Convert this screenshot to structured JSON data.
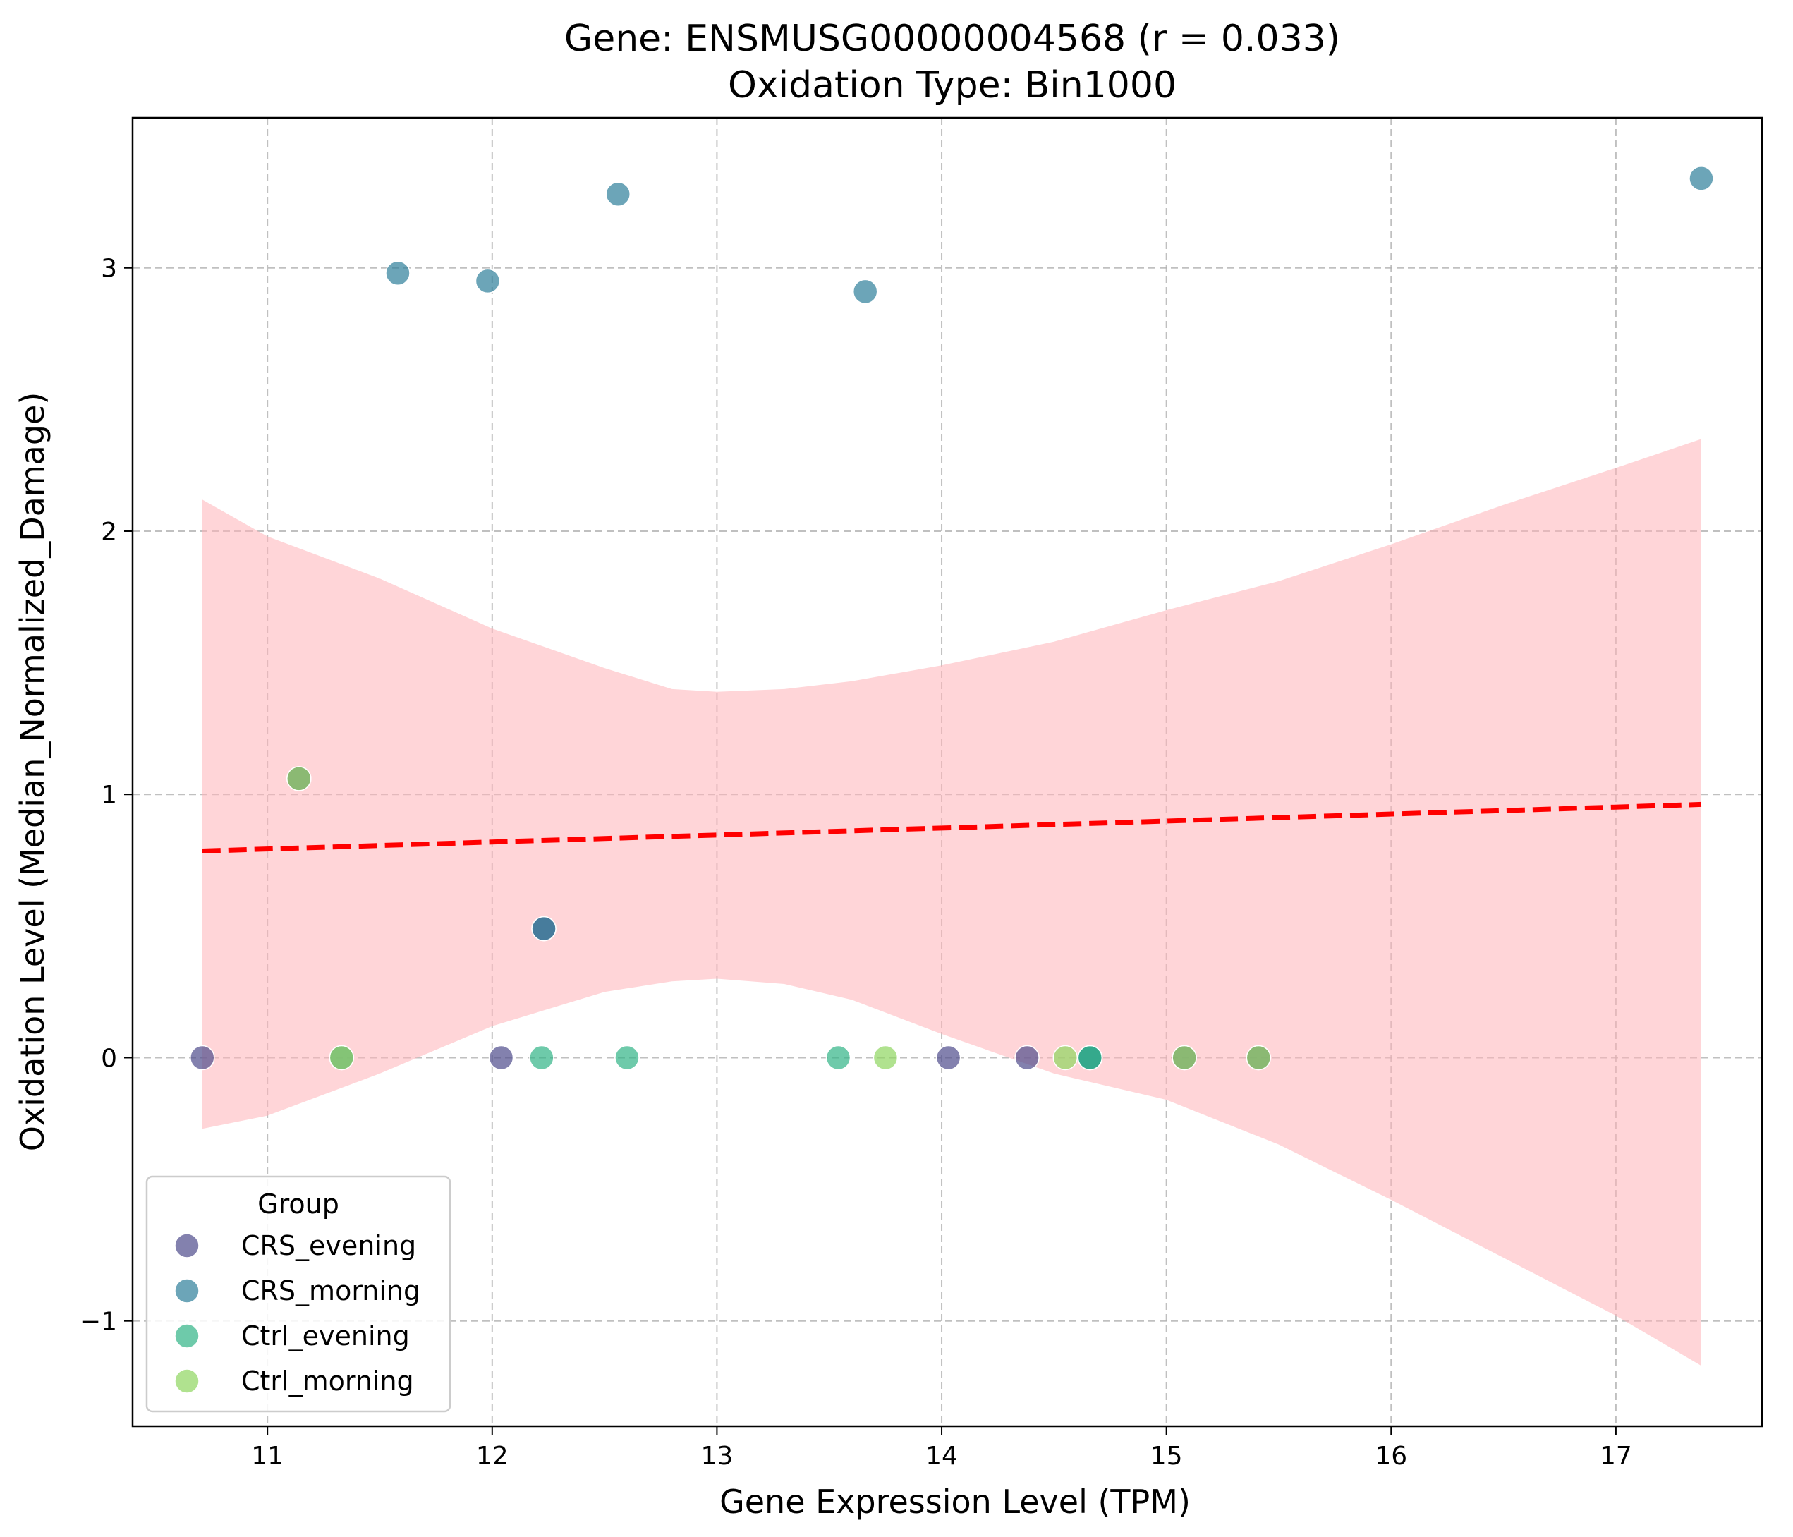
{
  "chart_data": {
    "type": "scatter",
    "title": "Gene: ENSMUSG00000004568 (r = 0.033)",
    "subtitle": "Oxidation Type: Bin1000",
    "xlabel": "Gene Expression Level (TPM)",
    "ylabel": "Oxidation Level (Median_Normalized_Damage)",
    "xlim": [
      10.4,
      17.65
    ],
    "ylim": [
      -1.4,
      3.57
    ],
    "xticks": [
      11,
      12,
      13,
      14,
      15,
      16,
      17
    ],
    "yticks": [
      -1,
      0,
      1,
      2,
      3
    ],
    "ytick_labels": [
      "−1",
      "0",
      "1",
      "2",
      "3"
    ],
    "grid": true,
    "legend": {
      "title": "Group",
      "placement": "lower-left",
      "entries": [
        "CRS_evening",
        "CRS_morning",
        "Ctrl_evening",
        "Ctrl_morning"
      ]
    },
    "colors": {
      "CRS_evening": "#4e4b8c",
      "CRS_morning": "#2e7f9a",
      "Ctrl_evening": "#30b486",
      "Ctrl_morning": "#8ed65f",
      "regression": "#ff0000",
      "ci_band": "#ffb3b8"
    },
    "series": [
      {
        "name": "CRS_evening",
        "points": [
          [
            10.71,
            0
          ],
          [
            12.04,
            0
          ],
          [
            14.03,
            0
          ],
          [
            14.38,
            0
          ]
        ]
      },
      {
        "name": "CRS_morning",
        "points": [
          [
            11.58,
            2.98
          ],
          [
            11.98,
            2.95
          ],
          [
            12.56,
            3.28
          ],
          [
            13.66,
            2.91
          ],
          [
            17.38,
            3.34
          ]
        ]
      },
      {
        "name": "Ctrl_evening",
        "points": [
          [
            12.22,
            0
          ],
          [
            12.6,
            0
          ],
          [
            13.54,
            0
          ],
          [
            14.66,
            0
          ]
        ]
      },
      {
        "name": "Ctrl_morning",
        "points": [
          [
            13.75,
            0
          ],
          [
            14.55,
            0
          ]
        ]
      }
    ],
    "overlapping_points": [
      {
        "x": 11.14,
        "y": 1.06,
        "groups": [
          "CRS_evening",
          "Ctrl_morning"
        ]
      },
      {
        "x": 11.33,
        "y": 0,
        "groups": [
          "CRS_morning",
          "Ctrl_morning"
        ]
      },
      {
        "x": 12.23,
        "y": 0.49,
        "groups": [
          "CRS_evening",
          "CRS_morning"
        ]
      },
      {
        "x": 14.66,
        "y": 0,
        "groups": [
          "CRS_morning",
          "Ctrl_evening"
        ]
      },
      {
        "x": 15.08,
        "y": 0,
        "groups": [
          "CRS_evening",
          "Ctrl_morning"
        ]
      },
      {
        "x": 15.41,
        "y": 0,
        "groups": [
          "CRS_evening",
          "Ctrl_morning"
        ]
      }
    ],
    "regression_line": {
      "x": [
        10.71,
        17.38
      ],
      "y": [
        0.785,
        0.962
      ],
      "style": "dashed"
    },
    "confidence_band": {
      "x": [
        10.71,
        11.0,
        11.5,
        12.0,
        12.5,
        12.8,
        13.0,
        13.3,
        13.6,
        14.0,
        14.5,
        15.0,
        15.5,
        16.0,
        16.5,
        17.0,
        17.38
      ],
      "upper": [
        2.12,
        1.98,
        1.82,
        1.63,
        1.48,
        1.4,
        1.39,
        1.4,
        1.43,
        1.49,
        1.58,
        1.7,
        1.81,
        1.95,
        2.1,
        2.24,
        2.35
      ],
      "lower": [
        -0.27,
        -0.22,
        -0.06,
        0.12,
        0.25,
        0.29,
        0.3,
        0.28,
        0.22,
        0.09,
        -0.06,
        -0.16,
        -0.33,
        -0.54,
        -0.76,
        -0.98,
        -1.17
      ]
    }
  }
}
